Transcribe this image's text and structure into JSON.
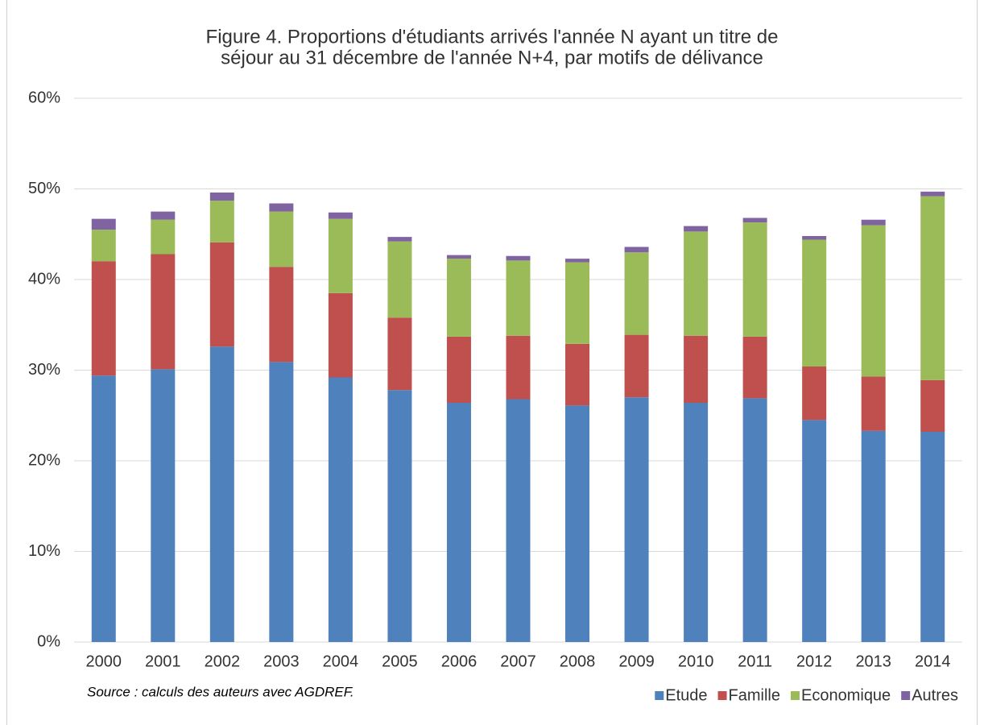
{
  "chart_data": {
    "type": "stacked_bar",
    "title": [
      "Figure 4. Proportions d'étudiants arrivés l'année N ayant un titre de",
      "séjour au 31 décembre de l'année N+4, par motifs de délivance"
    ],
    "source": "Source : calculs des auteurs avec AGDREF.",
    "categories": [
      "2000",
      "2001",
      "2002",
      "2003",
      "2004",
      "2005",
      "2006",
      "2007",
      "2008",
      "2009",
      "2010",
      "2011",
      "2012",
      "2013",
      "2014"
    ],
    "series": [
      {
        "name": "Etude",
        "color": "#4f81bd",
        "values": [
          29.4,
          30.1,
          32.6,
          30.9,
          29.2,
          27.8,
          26.4,
          26.8,
          26.1,
          27.0,
          26.4,
          26.9,
          24.5,
          23.3,
          23.2
        ]
      },
      {
        "name": "Famille",
        "color": "#c0504d",
        "values": [
          12.6,
          12.7,
          11.5,
          10.5,
          9.3,
          8.0,
          7.3,
          7.0,
          6.8,
          6.9,
          7.4,
          6.8,
          5.9,
          6.0,
          5.7
        ]
      },
      {
        "name": "Economique",
        "color": "#9bbb59",
        "values": [
          3.5,
          3.8,
          4.6,
          6.1,
          8.2,
          8.4,
          8.6,
          8.3,
          9.0,
          9.1,
          11.5,
          12.6,
          14.0,
          16.7,
          20.3
        ]
      },
      {
        "name": "Autres",
        "color": "#8064a2",
        "values": [
          1.2,
          0.9,
          0.9,
          0.9,
          0.7,
          0.5,
          0.4,
          0.5,
          0.4,
          0.6,
          0.6,
          0.5,
          0.4,
          0.6,
          0.5
        ]
      }
    ],
    "ylim": [
      0,
      60
    ],
    "yticks": [
      {
        "value": 0,
        "label": "0%"
      },
      {
        "value": 10,
        "label": "10%"
      },
      {
        "value": 20,
        "label": "20%"
      },
      {
        "value": 30,
        "label": "30%"
      },
      {
        "value": 40,
        "label": "40%"
      },
      {
        "value": 50,
        "label": "50%"
      },
      {
        "value": 60,
        "label": "60%"
      }
    ],
    "grid": true,
    "legend": "bottom-right"
  }
}
